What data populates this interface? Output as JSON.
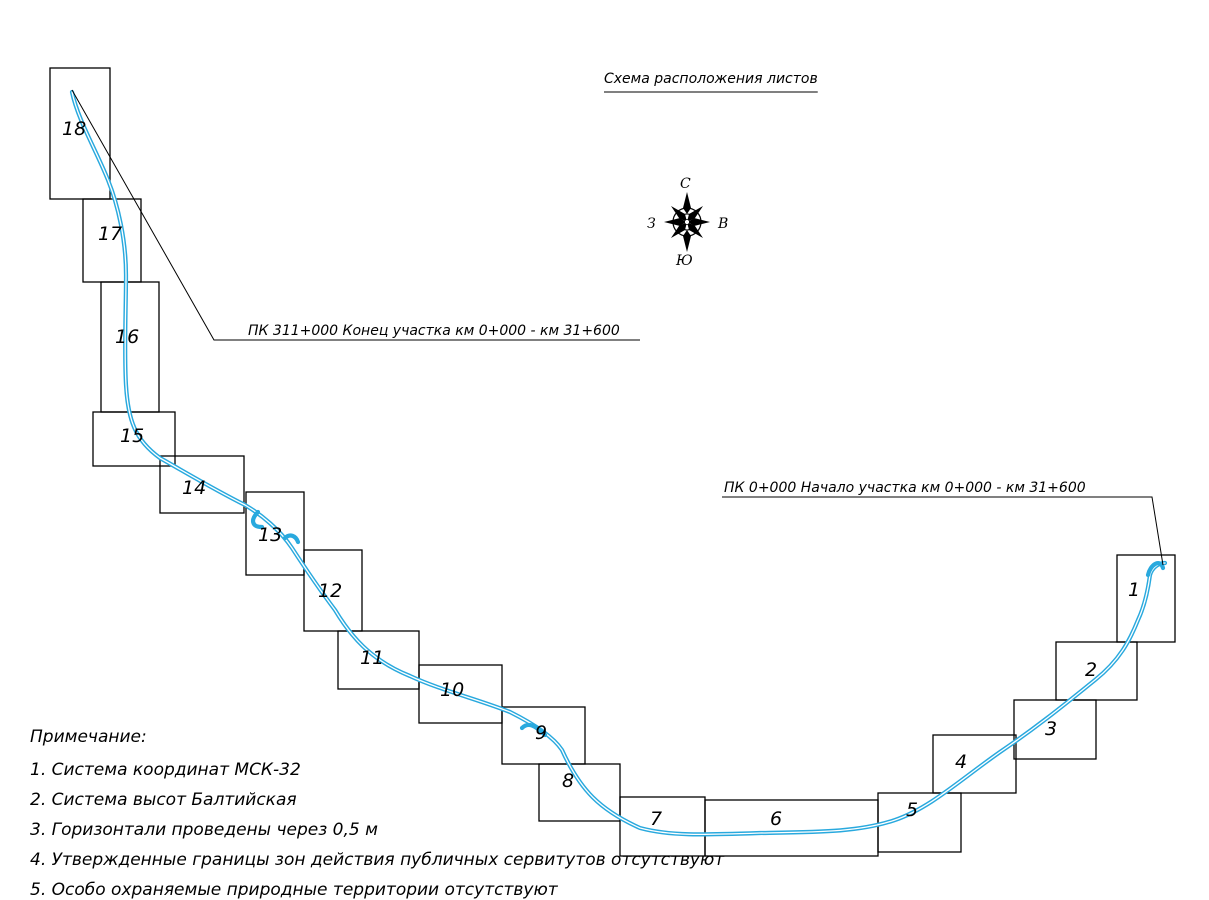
{
  "title": "Схема расположения листов",
  "compass": {
    "north": "С",
    "south": "Ю",
    "west": "З",
    "east": "В"
  },
  "start_label": "ПК 0+000 Начало участка км 0+000 - км 31+600",
  "end_label": "ПК 311+000 Конец участка км 0+000 - км 31+600",
  "sheets": [
    "1",
    "2",
    "3",
    "4",
    "5",
    "6",
    "7",
    "8",
    "9",
    "10",
    "11",
    "12",
    "13",
    "14",
    "15",
    "16",
    "17",
    "18"
  ],
  "notes": {
    "heading": "Примечание:",
    "items": [
      "1. Система координат МСК-32",
      "2. Система высот Балтийская",
      "3. Горизонтали проведены через 0,5 м",
      "4. Утвержденные границы зон действия публичных сервитутов отсутствуют",
      "5. Особо охраняемые природные территории отсутствуют"
    ]
  },
  "colors": {
    "route": "#29a9de",
    "lines": "#000000"
  }
}
